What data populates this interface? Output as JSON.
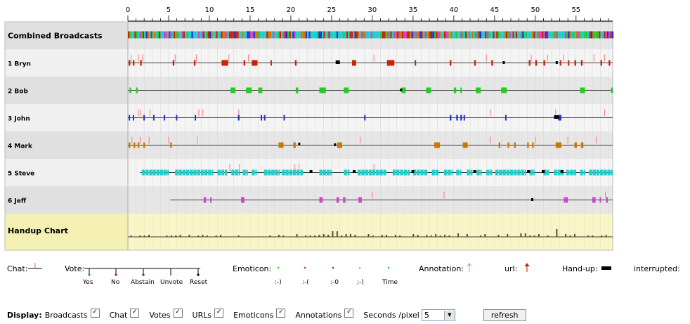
{
  "axis": {
    "ticks": [
      "0",
      "5",
      "10",
      "15",
      "20",
      "25",
      "30",
      "35",
      "40",
      "45",
      "50",
      "55"
    ]
  },
  "rows": [
    {
      "label": "Combined Broadcasts"
    },
    {
      "label": "1 Bryn"
    },
    {
      "label": "2 Bob"
    },
    {
      "label": "3 John"
    },
    {
      "label": "4 Mark"
    },
    {
      "label": "5 Steve"
    },
    {
      "label": "6 Jeff"
    },
    {
      "label": "Handup Chart"
    }
  ],
  "colors": {
    "bryn": "#cc2200",
    "bob": "#22cc22",
    "john": "#2233cc",
    "mark": "#cc7700",
    "steve": "#22cccc",
    "jeff": "#cc44cc",
    "handup": "#6b4a1c",
    "annotation": "#ff7777"
  },
  "legend": {
    "chat": "Chat:",
    "vote": "Vote:",
    "vote_options": [
      "Yes",
      "No",
      "Abstain",
      "Unvote",
      "Reset"
    ],
    "emoticon": "Emoticon:",
    "emoticon_options": [
      ":-)",
      ":-(",
      ":-0",
      ";-)",
      "Time"
    ],
    "annotation": "Annotation:",
    "url": "url:",
    "handup": "Hand-up:",
    "interrupted": "interrupted:"
  },
  "display": {
    "label": "Display:",
    "options": [
      "Broadcasts",
      "Chat",
      "Votes",
      "URLs",
      "Emoticons",
      "Annotations"
    ],
    "seconds_label": "Seconds /pixel",
    "seconds_value": "5",
    "refresh": "refresh"
  }
}
